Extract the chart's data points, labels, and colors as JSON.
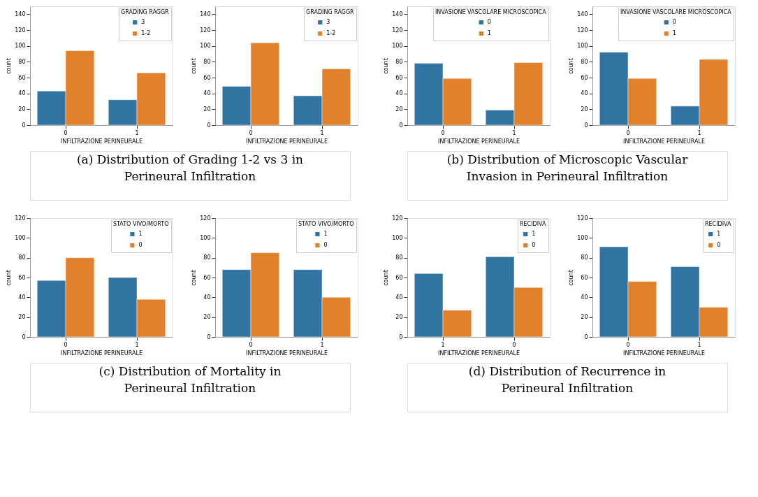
{
  "chart_data": [
    {
      "type": "bar",
      "xlabel": "INFILTRAZIONE PERINEURALE",
      "ylabel": "count",
      "categories": [
        "0",
        "1"
      ],
      "legend_title": "GRADING RAGGR",
      "legend": "top right",
      "ylim": [
        0,
        150
      ],
      "yticks": [
        0,
        20,
        40,
        60,
        80,
        100,
        120,
        140
      ],
      "annotations": [
        "(a) Distribution of Grading 1-2 vs 3 in Perineural Infiltration"
      ],
      "series": [
        {
          "name": "3",
          "color": "#3274a1",
          "values": [
            43,
            32
          ]
        },
        {
          "name": "1-2",
          "color": "#e1812c",
          "values": [
            94,
            66
          ]
        }
      ]
    },
    {
      "type": "bar",
      "xlabel": "INFILTRAZIONE PERINEURALE",
      "ylabel": "count",
      "categories": [
        "0",
        "1"
      ],
      "legend_title": "GRADING RAGGR",
      "legend": "top right",
      "ylim": [
        0,
        150
      ],
      "yticks": [
        0,
        20,
        40,
        60,
        80,
        100,
        120,
        140
      ],
      "series": [
        {
          "name": "3",
          "color": "#3274a1",
          "values": [
            49,
            37
          ]
        },
        {
          "name": "1-2",
          "color": "#e1812c",
          "values": [
            104,
            71
          ]
        }
      ]
    },
    {
      "type": "bar",
      "xlabel": "INFILTRAZIONE PERINEURALE",
      "ylabel": "count",
      "categories": [
        "0",
        "1"
      ],
      "legend_title": "INVASIONE VASCOLARE MICROSCOPICA",
      "legend": "top right",
      "ylim": [
        0,
        150
      ],
      "yticks": [
        0,
        20,
        40,
        60,
        80,
        100,
        120,
        140
      ],
      "annotations": [
        "(b) Distribution of Microscopic Vascular Invasion in Perineural Infiltration"
      ],
      "series": [
        {
          "name": "0",
          "color": "#3274a1",
          "values": [
            78,
            19
          ]
        },
        {
          "name": "1",
          "color": "#e1812c",
          "values": [
            59,
            79
          ]
        }
      ]
    },
    {
      "type": "bar",
      "xlabel": "INFILTRAZIONE PERINEURALE",
      "ylabel": "count",
      "categories": [
        "0",
        "1"
      ],
      "legend_title": "INVASIONE VASCOLARE MICROSCOPICA",
      "legend": "top right",
      "ylim": [
        0,
        150
      ],
      "yticks": [
        0,
        20,
        40,
        60,
        80,
        100,
        120,
        140
      ],
      "series": [
        {
          "name": "0",
          "color": "#3274a1",
          "values": [
            92,
            24
          ]
        },
        {
          "name": "1",
          "color": "#e1812c",
          "values": [
            59,
            83
          ]
        }
      ]
    },
    {
      "type": "bar",
      "xlabel": "INFILTRAZIONE PERINEURALE",
      "ylabel": "count",
      "categories": [
        "0",
        "1"
      ],
      "legend_title": "STATO VIVO/MORTO",
      "legend": "top right",
      "ylim": [
        0,
        120
      ],
      "yticks": [
        0,
        20,
        40,
        60,
        80,
        100,
        120
      ],
      "annotations": [
        "(c) Distribution of Mortality in Perineural Infiltration"
      ],
      "series": [
        {
          "name": "1",
          "color": "#3274a1",
          "values": [
            57,
            60
          ]
        },
        {
          "name": "0",
          "color": "#e1812c",
          "values": [
            80,
            38
          ]
        }
      ]
    },
    {
      "type": "bar",
      "xlabel": "INFILTRAZIONE PERINEURALE",
      "ylabel": "count",
      "categories": [
        "0",
        "1"
      ],
      "legend_title": "STATO VIVO/MORTO",
      "legend": "top right",
      "ylim": [
        0,
        120
      ],
      "yticks": [
        0,
        20,
        40,
        60,
        80,
        100,
        120
      ],
      "series": [
        {
          "name": "1",
          "color": "#3274a1",
          "values": [
            68,
            68
          ]
        },
        {
          "name": "0",
          "color": "#e1812c",
          "values": [
            85,
            40
          ]
        }
      ]
    },
    {
      "type": "bar",
      "xlabel": "INFILTRAZIONE PERINEURALE",
      "ylabel": "count",
      "categories": [
        "1",
        "0"
      ],
      "legend_title": "RECIDIVA",
      "legend": "top right",
      "ylim": [
        0,
        120
      ],
      "yticks": [
        0,
        20,
        40,
        60,
        80,
        100,
        120
      ],
      "annotations": [
        "(d) Distribution of Recurrence in Perineural Infiltration"
      ],
      "series": [
        {
          "name": "1",
          "color": "#3274a1",
          "values": [
            64,
            81
          ]
        },
        {
          "name": "0",
          "color": "#e1812c",
          "values": [
            27,
            50
          ]
        }
      ]
    },
    {
      "type": "bar",
      "xlabel": "INFILTRAZIONE PERINEURALE",
      "ylabel": "count",
      "categories": [
        "0",
        "1"
      ],
      "legend_title": "RECIDIVA",
      "legend": "top right",
      "ylim": [
        0,
        120
      ],
      "yticks": [
        0,
        20,
        40,
        60,
        80,
        100,
        120
      ],
      "series": [
        {
          "name": "1",
          "color": "#3274a1",
          "values": [
            91,
            71
          ]
        },
        {
          "name": "0",
          "color": "#e1812c",
          "values": [
            56,
            30
          ]
        }
      ]
    }
  ]
}
